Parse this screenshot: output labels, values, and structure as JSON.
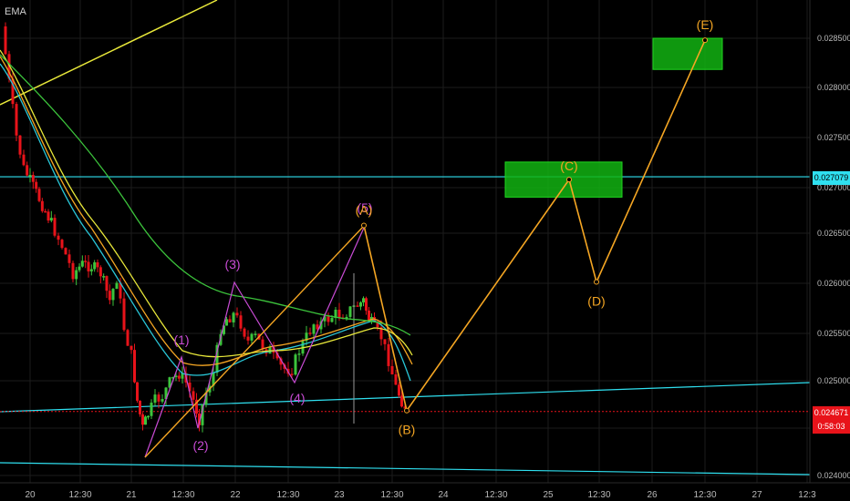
{
  "indicator_label": "EMA",
  "price_tags": {
    "cyan": "0.027079",
    "last": "0.024671",
    "countdown": "0:58:03"
  },
  "colors": {
    "background": "#000000",
    "grid": "#1c1c1c",
    "up_candle": "#3cc43c",
    "down_candle": "#e8131a",
    "cyan_line": "#2fe0f0",
    "orange_path": "#f5a623",
    "purple_wave": "#c84bd4",
    "green_box": "#12b312",
    "yellow_line": "#e8e83a"
  },
  "chart_data": {
    "type": "candlestick",
    "x_ticks": [
      "20",
      "12:30",
      "21",
      "12:30",
      "22",
      "12:30",
      "23",
      "12:30",
      "24",
      "12:30",
      "25",
      "12:30",
      "26",
      "12:30",
      "27",
      "12:3"
    ],
    "y_ticks": [
      "0.028500",
      "0.028000",
      "0.027500",
      "0.027000",
      "0.026500",
      "0.026000",
      "0.025500",
      "0.025000",
      "0.024500",
      "0.024000"
    ],
    "y_range": [
      0.024,
      0.029
    ],
    "horizontal_levels": [
      0.027079,
      0.024671
    ],
    "wave_labels_purple": [
      "(1)",
      "(2)",
      "(3)",
      "(4)",
      "(5)"
    ],
    "wave_labels_orange": [
      "(A)",
      "(B)",
      "(C)",
      "(D)",
      "(E)"
    ],
    "projection_points": [
      {
        "label": "(A)",
        "price": 0.02658
      },
      {
        "label": "(B)",
        "price": 0.02468
      },
      {
        "label": "(C)",
        "price": 0.02705
      },
      {
        "label": "(D)",
        "price": 0.026
      },
      {
        "label": "(E)",
        "price": 0.02848
      }
    ],
    "target_zones": [
      {
        "label": "(C)",
        "top": 0.02723,
        "bottom": 0.02687
      },
      {
        "label": "(E)",
        "top": 0.0285,
        "bottom": 0.02818
      }
    ]
  }
}
